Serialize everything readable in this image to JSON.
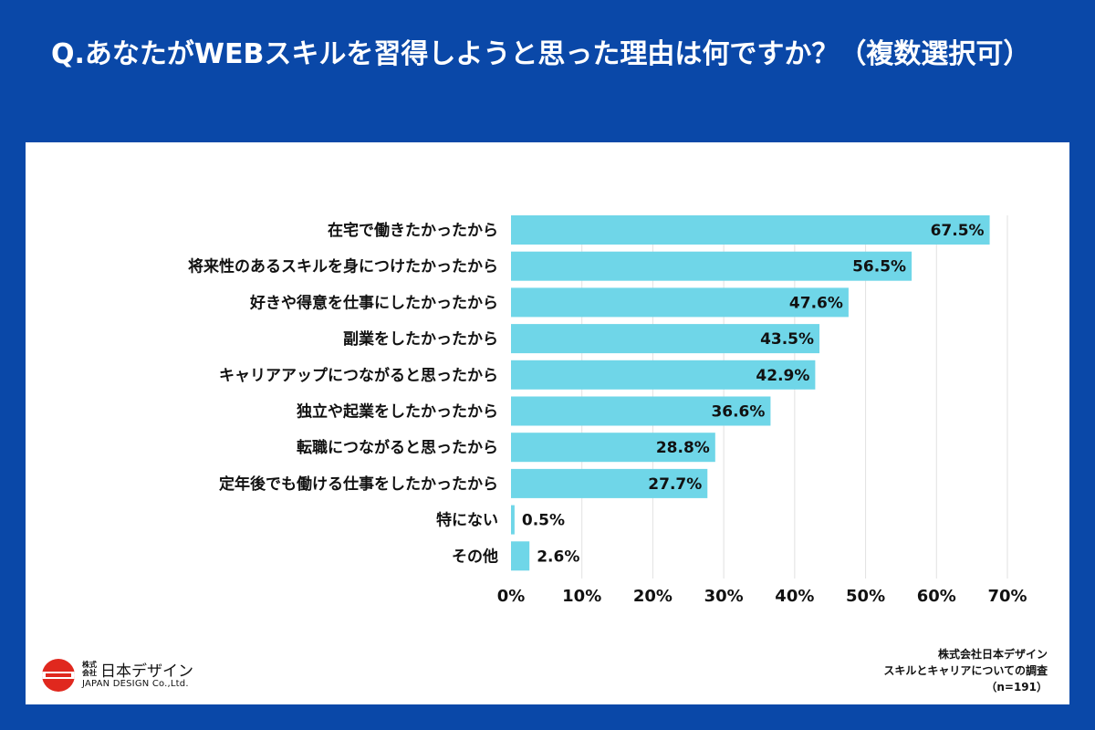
{
  "header": {
    "title": "Q.あなたがWEBスキルを習得しようと思った理由は何ですか？（複数選択可）"
  },
  "chart_data": {
    "type": "bar",
    "orientation": "horizontal",
    "categories": [
      "在宅で働きたかったから",
      "将来性のあるスキルを身につけたかったから",
      "好きや得意を仕事にしたかったから",
      "副業をしたかったから",
      "キャリアアップにつながると思ったから",
      "独立や起業をしたかったから",
      "転職につながると思ったから",
      "定年後でも働ける仕事をしたかったから",
      "特にない",
      "その他"
    ],
    "values": [
      67.5,
      56.5,
      47.6,
      43.5,
      42.9,
      36.6,
      28.8,
      27.7,
      0.5,
      2.6
    ],
    "value_labels": [
      "67.5%",
      "56.5%",
      "47.6%",
      "43.5%",
      "42.9%",
      "36.6%",
      "28.8%",
      "27.7%",
      "0.5%",
      "2.6%"
    ],
    "xlim": [
      0,
      70
    ],
    "x_ticks": [
      0,
      10,
      20,
      30,
      40,
      50,
      60,
      70
    ],
    "x_tick_labels": [
      "0%",
      "10%",
      "20%",
      "30%",
      "40%",
      "50%",
      "60%",
      "70%"
    ],
    "grid": "vertical",
    "bar_color": "#6fd6e8"
  },
  "footer": {
    "logo_kabushiki": "株式会社",
    "logo_name": "日本デザイン",
    "logo_en": "JAPAN DESIGN Co.,Ltd.",
    "source_company": "株式会社日本デザイン",
    "source_survey": "スキルとキャリアについての調査",
    "source_n": "（n=191）"
  },
  "colors": {
    "background": "#0a48a8",
    "panel": "#ffffff",
    "logo_red": "#e0281e"
  }
}
